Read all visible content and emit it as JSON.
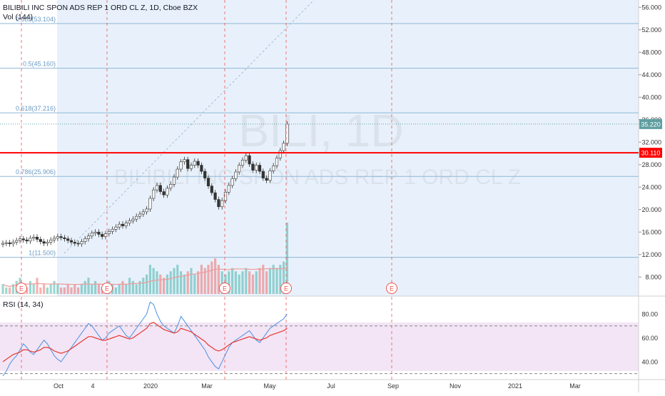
{
  "header": {
    "title": "BILIBILI INC SPON ADS REP 1 ORD CL Z, 1D, Cboe BZX",
    "volume_label": "Vol (144)"
  },
  "watermark": {
    "symbol": "BILI, 1D",
    "description": "BILIBILI INC SPON ADS REP 1 ORD CL Z"
  },
  "rsi_label": "RSI (14, 34)",
  "colors": {
    "up": "#26a69a",
    "down": "#ef5350",
    "price_line": "#ff0000",
    "last_price_bg": "#5f9ea0",
    "fib": "#8fb7d6",
    "shade": "#e8f1fb",
    "rsi_band": "#f3e5f5",
    "rsi_fast": "#4a90e2",
    "rsi_slow": "#e53935",
    "earnings": "#ef5350"
  },
  "chart_data": [
    {
      "type": "candlestick",
      "name": "price",
      "yaxis": {
        "range": [
          4.6,
          57.3
        ],
        "ticks": [
          "56.000",
          "52.000",
          "48.000",
          "44.000",
          "40.000",
          "36.000",
          "32.000",
          "28.000",
          "24.000",
          "20.000",
          "16.000",
          "12.000",
          "8.000"
        ]
      },
      "xaxis": {
        "ticks": [
          {
            "label": "Oct",
            "idx": 17
          },
          {
            "label": "4",
            "idx": 27
          },
          {
            "label": "2020",
            "idx": 44
          },
          {
            "label": "Mar",
            "idx": 62
          },
          {
            "label": "May",
            "idx": 82
          },
          {
            "label": "Jul",
            "idx": 102
          },
          {
            "label": "Sep",
            "idx": 122
          },
          {
            "label": "Nov",
            "idx": 142
          },
          {
            "label": "2021",
            "idx": 162
          },
          {
            "label": "Mar",
            "idx": 182
          }
        ]
      },
      "closes": [
        14.0,
        14.1,
        13.9,
        14.2,
        14.5,
        14.8,
        14.6,
        14.4,
        14.9,
        15.1,
        14.7,
        14.3,
        14.0,
        14.2,
        14.6,
        14.9,
        15.2,
        15.0,
        14.8,
        14.5,
        14.2,
        14.0,
        13.9,
        14.3,
        14.8,
        15.3,
        15.8,
        16.0,
        15.6,
        15.2,
        15.7,
        16.1,
        16.5,
        16.9,
        17.4,
        17.1,
        17.6,
        18.0,
        18.3,
        18.8,
        19.2,
        19.6,
        20.1,
        22.0,
        23.5,
        24.3,
        23.2,
        22.6,
        23.8,
        24.5,
        25.8,
        27.2,
        28.5,
        28.9,
        27.3,
        27.9,
        28.6,
        27.9,
        26.8,
        25.6,
        24.2,
        23.0,
        21.8,
        20.5,
        21.6,
        23.1,
        24.3,
        25.5,
        26.7,
        27.9,
        28.8,
        29.6,
        28.1,
        27.0,
        27.9,
        26.8,
        25.6,
        25.2,
        26.9,
        27.8,
        29.2,
        30.5,
        31.8,
        35.2
      ],
      "earnings_markers_idx": [
        7,
        33,
        69,
        90,
        122
      ],
      "last_price": "35.220",
      "horizontal_line": "30.110",
      "fibonacci_levels": [
        {
          "label": "0.382(53.104)",
          "value": 53.104
        },
        {
          "label": "0.5(45.160)",
          "value": 45.16
        },
        {
          "label": "0.618(37.216)",
          "value": 37.216
        },
        {
          "label": "0.786(25.906)",
          "value": 25.906
        },
        {
          "label": "1(11.500)",
          "value": 11.5
        }
      ],
      "earnings_marker_text": "E"
    },
    {
      "type": "bar",
      "name": "Vol (144)",
      "values": [
        3,
        2,
        2,
        3,
        4,
        5,
        3,
        2,
        4,
        3,
        5,
        2,
        3,
        2,
        3,
        4,
        3,
        2,
        2,
        3,
        2,
        3,
        2,
        3,
        4,
        5,
        3,
        4,
        3,
        2,
        3,
        4,
        3,
        2,
        3,
        4,
        3,
        5,
        4,
        3,
        4,
        5,
        6,
        9,
        8,
        7,
        6,
        5,
        6,
        7,
        8,
        9,
        7,
        6,
        7,
        8,
        6,
        7,
        9,
        8,
        9,
        10,
        11,
        9,
        7,
        6,
        7,
        8,
        7,
        6,
        7,
        8,
        7,
        6,
        7,
        8,
        9,
        7,
        8,
        9,
        8,
        9,
        10,
        22
      ]
    },
    {
      "type": "line",
      "name": "RSI (14, 34)",
      "yaxis": {
        "range": [
          25,
          95
        ],
        "ticks": [
          "80.00",
          "60.00",
          "40.00"
        ]
      },
      "band": [
        30,
        70
      ],
      "series_fast": [
        28,
        32,
        38,
        42,
        45,
        50,
        55,
        52,
        48,
        46,
        50,
        54,
        58,
        55,
        50,
        45,
        42,
        40,
        44,
        48,
        52,
        56,
        60,
        64,
        68,
        72,
        70,
        66,
        62,
        58,
        60,
        64,
        66,
        68,
        70,
        66,
        62,
        60,
        64,
        68,
        72,
        76,
        80,
        90,
        88,
        80,
        74,
        70,
        68,
        66,
        64,
        70,
        78,
        74,
        70,
        66,
        62,
        58,
        54,
        50,
        44,
        40,
        36,
        34,
        40,
        46,
        52,
        56,
        58,
        60,
        62,
        64,
        66,
        62,
        58,
        56,
        60,
        64,
        68,
        70,
        72,
        74,
        76,
        80
      ],
      "series_slow": [
        40,
        42,
        44,
        46,
        47,
        48,
        50,
        50,
        49,
        48,
        49,
        50,
        52,
        52,
        51,
        49,
        48,
        47,
        48,
        49,
        51,
        53,
        55,
        57,
        59,
        61,
        61,
        60,
        59,
        58,
        58,
        59,
        60,
        61,
        62,
        61,
        60,
        59,
        60,
        62,
        64,
        66,
        68,
        72,
        73,
        71,
        69,
        67,
        66,
        65,
        64,
        65,
        68,
        67,
        66,
        65,
        63,
        61,
        59,
        57,
        54,
        52,
        50,
        49,
        50,
        52,
        54,
        56,
        57,
        58,
        59,
        60,
        61,
        60,
        59,
        58,
        59,
        60,
        62,
        63,
        64,
        65,
        66,
        68
      ]
    }
  ]
}
